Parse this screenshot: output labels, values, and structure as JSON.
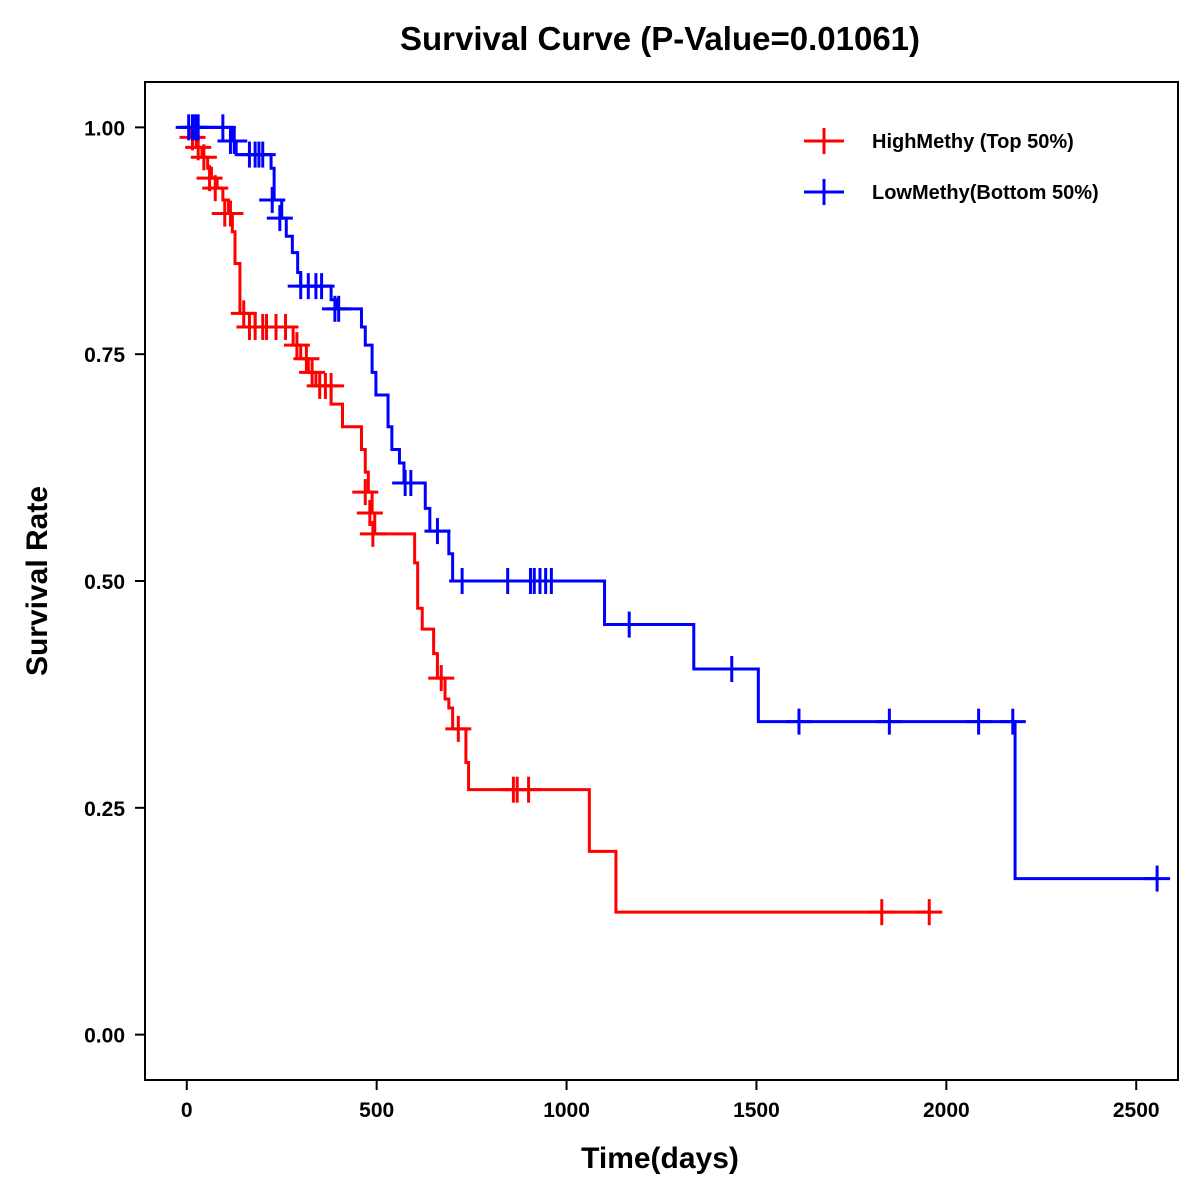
{
  "chart_data": {
    "type": "line",
    "subtype": "kaplan-meier-step",
    "title": "Survival Curve (P-Value=0.01061)",
    "xlabel": "Time(days)",
    "ylabel": "Survival Rate",
    "xlim": [
      -110,
      2610
    ],
    "ylim": [
      -0.05,
      1.05
    ],
    "xticks": [
      0,
      500,
      1000,
      1500,
      2000,
      2500
    ],
    "xtick_labels": [
      "0",
      "500",
      "1000",
      "1500",
      "2000",
      "2500"
    ],
    "yticks": [
      0,
      0.25,
      0.5,
      0.75,
      1.0
    ],
    "ytick_labels": [
      "0.00",
      "0.25",
      "0.50",
      "0.75",
      "1.00"
    ],
    "grid": false,
    "legend_position": "top-right",
    "series": [
      {
        "name": "HighMethy (Top 50%)",
        "color": "#ff0000",
        "steps": [
          [
            0,
            1.0
          ],
          [
            10,
            0.989
          ],
          [
            25,
            0.978
          ],
          [
            40,
            0.967
          ],
          [
            55,
            0.955
          ],
          [
            65,
            0.944
          ],
          [
            80,
            0.933
          ],
          [
            95,
            0.92
          ],
          [
            110,
            0.905
          ],
          [
            120,
            0.885
          ],
          [
            127,
            0.85
          ],
          [
            140,
            0.795
          ],
          [
            180,
            0.78
          ],
          [
            280,
            0.76
          ],
          [
            300,
            0.745
          ],
          [
            320,
            0.73
          ],
          [
            340,
            0.715
          ],
          [
            380,
            0.695
          ],
          [
            410,
            0.67
          ],
          [
            460,
            0.645
          ],
          [
            470,
            0.62
          ],
          [
            478,
            0.598
          ],
          [
            488,
            0.575
          ],
          [
            495,
            0.552
          ],
          [
            600,
            0.52
          ],
          [
            608,
            0.47
          ],
          [
            620,
            0.447
          ],
          [
            650,
            0.42
          ],
          [
            660,
            0.393
          ],
          [
            680,
            0.37
          ],
          [
            690,
            0.36
          ],
          [
            700,
            0.337
          ],
          [
            735,
            0.3
          ],
          [
            742,
            0.27
          ],
          [
            1060,
            0.202
          ],
          [
            1130,
            0.135
          ]
        ],
        "end_x": 1960,
        "censored": [
          [
            15,
            0.989
          ],
          [
            30,
            0.978
          ],
          [
            45,
            0.967
          ],
          [
            60,
            0.944
          ],
          [
            75,
            0.933
          ],
          [
            100,
            0.905
          ],
          [
            115,
            0.905
          ],
          [
            150,
            0.795
          ],
          [
            165,
            0.78
          ],
          [
            180,
            0.78
          ],
          [
            200,
            0.78
          ],
          [
            210,
            0.78
          ],
          [
            235,
            0.78
          ],
          [
            260,
            0.78
          ],
          [
            290,
            0.76
          ],
          [
            315,
            0.745
          ],
          [
            330,
            0.73
          ],
          [
            350,
            0.715
          ],
          [
            365,
            0.715
          ],
          [
            380,
            0.715
          ],
          [
            470,
            0.598
          ],
          [
            482,
            0.575
          ],
          [
            490,
            0.552
          ],
          [
            670,
            0.393
          ],
          [
            715,
            0.337
          ],
          [
            860,
            0.27
          ],
          [
            870,
            0.27
          ],
          [
            900,
            0.27
          ],
          [
            1830,
            0.135
          ],
          [
            1955,
            0.135
          ]
        ]
      },
      {
        "name": "LowMethy(Bottom 50%)",
        "color": "#0000ff",
        "steps": [
          [
            0,
            1.0
          ],
          [
            120,
            0.985
          ],
          [
            130,
            0.97
          ],
          [
            222,
            0.955
          ],
          [
            230,
            0.92
          ],
          [
            250,
            0.9
          ],
          [
            262,
            0.88
          ],
          [
            278,
            0.862
          ],
          [
            292,
            0.84
          ],
          [
            300,
            0.825
          ],
          [
            380,
            0.81
          ],
          [
            395,
            0.8
          ],
          [
            460,
            0.78
          ],
          [
            470,
            0.76
          ],
          [
            488,
            0.73
          ],
          [
            498,
            0.705
          ],
          [
            530,
            0.67
          ],
          [
            540,
            0.645
          ],
          [
            560,
            0.63
          ],
          [
            572,
            0.608
          ],
          [
            628,
            0.58
          ],
          [
            640,
            0.555
          ],
          [
            690,
            0.53
          ],
          [
            700,
            0.5
          ],
          [
            1100,
            0.452
          ],
          [
            1335,
            0.403
          ],
          [
            1505,
            0.345
          ],
          [
            2181,
            0.172
          ]
        ],
        "end_x": 2555,
        "censored": [
          [
            5,
            1.0
          ],
          [
            15,
            1.0
          ],
          [
            20,
            1.0
          ],
          [
            25,
            1.0
          ],
          [
            30,
            1.0
          ],
          [
            95,
            1.0
          ],
          [
            115,
            0.985
          ],
          [
            125,
            0.985
          ],
          [
            165,
            0.97
          ],
          [
            180,
            0.97
          ],
          [
            190,
            0.97
          ],
          [
            200,
            0.97
          ],
          [
            225,
            0.92
          ],
          [
            245,
            0.9
          ],
          [
            300,
            0.825
          ],
          [
            320,
            0.825
          ],
          [
            340,
            0.825
          ],
          [
            355,
            0.825
          ],
          [
            390,
            0.8
          ],
          [
            400,
            0.8
          ],
          [
            575,
            0.608
          ],
          [
            590,
            0.608
          ],
          [
            660,
            0.555
          ],
          [
            725,
            0.5
          ],
          [
            845,
            0.5
          ],
          [
            905,
            0.5
          ],
          [
            915,
            0.5
          ],
          [
            930,
            0.5
          ],
          [
            945,
            0.5
          ],
          [
            960,
            0.5
          ],
          [
            1165,
            0.452
          ],
          [
            1435,
            0.403
          ],
          [
            1612,
            0.345
          ],
          [
            1850,
            0.345
          ],
          [
            2085,
            0.345
          ],
          [
            2175,
            0.345
          ],
          [
            2555,
            0.172
          ]
        ]
      }
    ]
  }
}
